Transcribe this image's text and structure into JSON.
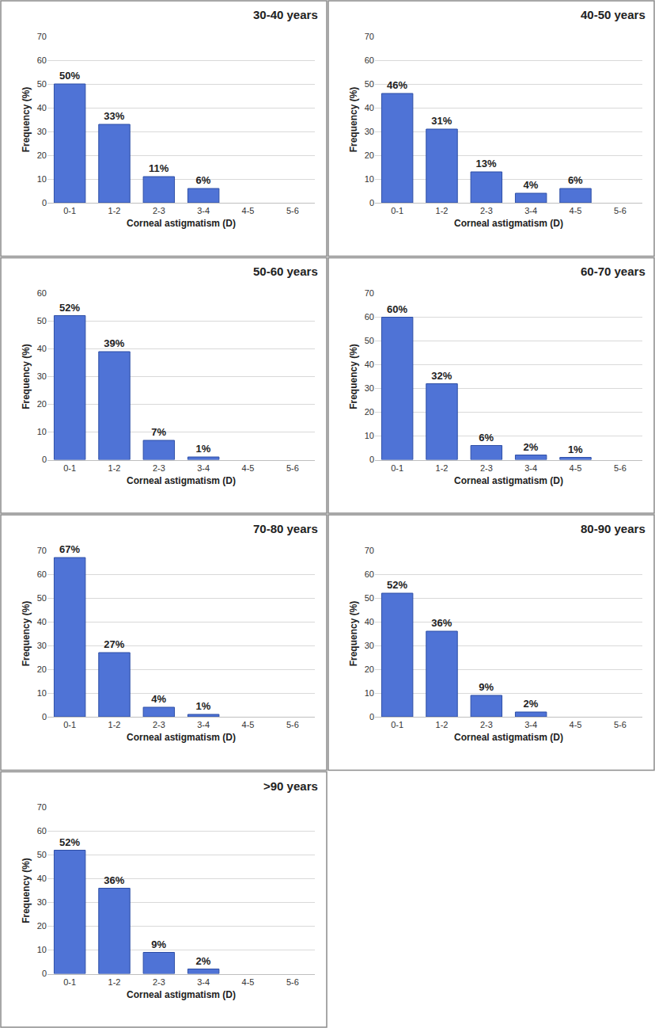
{
  "chart_data": [
    {
      "type": "bar",
      "title": "30-40 years",
      "x_label": "Corneal astigmatism (D)",
      "y_label": "Frequency (%)",
      "categories": [
        "0-1",
        "1-2",
        "2-3",
        "3-4",
        "4-5",
        "5-6"
      ],
      "values": [
        50,
        33,
        11,
        6,
        null,
        null
      ],
      "value_labels": [
        "50%",
        "33%",
        "11%",
        "6%",
        null,
        null
      ],
      "color": "#4f73d6",
      "ylim": [
        0,
        70
      ],
      "yticks": [
        0,
        10,
        20,
        30,
        40,
        50,
        60,
        70
      ],
      "grid": true,
      "data_labels": true
    },
    {
      "type": "bar",
      "title": "40-50 years",
      "x_label": "Corneal astigmatism (D)",
      "y_label": "Frequency (%)",
      "categories": [
        "0-1",
        "1-2",
        "2-3",
        "3-4",
        "4-5",
        "5-6"
      ],
      "values": [
        46,
        31,
        13,
        4,
        6,
        null
      ],
      "value_labels": [
        "46%",
        "31%",
        "13%",
        "4%",
        "6%",
        null
      ],
      "color": "#4f73d6",
      "ylim": [
        0,
        70
      ],
      "yticks": [
        0,
        10,
        20,
        30,
        40,
        50,
        60,
        70
      ],
      "grid": true,
      "data_labels": true
    },
    {
      "type": "bar",
      "title": "50-60 years",
      "x_label": "Corneal astigmatism (D)",
      "y_label": "Frequency (%)",
      "categories": [
        "0-1",
        "1-2",
        "2-3",
        "3-4",
        "4-5",
        "5-6"
      ],
      "values": [
        52,
        39,
        7,
        1,
        null,
        null
      ],
      "value_labels": [
        "52%",
        "39%",
        "7%",
        "1%",
        null,
        null
      ],
      "color": "#4f73d6",
      "ylim": [
        0,
        60
      ],
      "yticks": [
        0,
        10,
        20,
        30,
        40,
        50,
        60
      ],
      "grid": true,
      "data_labels": true
    },
    {
      "type": "bar",
      "title": "60-70 years",
      "x_label": "Corneal astigmatism (D)",
      "y_label": "Frequency (%)",
      "categories": [
        "0-1",
        "1-2",
        "2-3",
        "3-4",
        "4-5",
        "5-6"
      ],
      "values": [
        60,
        32,
        6,
        2,
        1,
        null
      ],
      "value_labels": [
        "60%",
        "32%",
        "6%",
        "2%",
        "1%",
        null
      ],
      "color": "#4f73d6",
      "ylim": [
        0,
        70
      ],
      "yticks": [
        0,
        10,
        20,
        30,
        40,
        50,
        60,
        70
      ],
      "grid": true,
      "data_labels": true
    },
    {
      "type": "bar",
      "title": "70-80 years",
      "x_label": "Corneal astigmatism (D)",
      "y_label": "Frequency (%)",
      "categories": [
        "0-1",
        "1-2",
        "2-3",
        "3-4",
        "4-5",
        "5-6"
      ],
      "values": [
        67,
        27,
        4,
        1,
        null,
        null
      ],
      "value_labels": [
        "67%",
        "27%",
        "4%",
        "1%",
        null,
        null
      ],
      "color": "#4f73d6",
      "ylim": [
        0,
        70
      ],
      "yticks": [
        0,
        10,
        20,
        30,
        40,
        50,
        60,
        70
      ],
      "grid": true,
      "data_labels": true
    },
    {
      "type": "bar",
      "title": "80-90 years",
      "x_label": "Corneal astigmatism (D)",
      "y_label": "Frequency (%)",
      "categories": [
        "0-1",
        "1-2",
        "2-3",
        "3-4",
        "4-5",
        "5-6"
      ],
      "values": [
        52,
        36,
        9,
        2,
        null,
        null
      ],
      "value_labels": [
        "52%",
        "36%",
        "9%",
        "2%",
        null,
        null
      ],
      "color": "#4f73d6",
      "ylim": [
        0,
        70
      ],
      "yticks": [
        0,
        10,
        20,
        30,
        40,
        50,
        60,
        70
      ],
      "grid": true,
      "data_labels": true
    },
    {
      "type": "bar",
      "title": ">90 years",
      "x_label": "Corneal astigmatism (D)",
      "y_label": "Frequency (%)",
      "categories": [
        "0-1",
        "1-2",
        "2-3",
        "3-4",
        "4-5",
        "5-6"
      ],
      "values": [
        52,
        36,
        9,
        2,
        null,
        null
      ],
      "value_labels": [
        "52%",
        "36%",
        "9%",
        "2%",
        null,
        null
      ],
      "color": "#4f73d6",
      "ylim": [
        0,
        70
      ],
      "yticks": [
        0,
        10,
        20,
        30,
        40,
        50,
        60,
        70
      ],
      "grid": true,
      "data_labels": true
    }
  ]
}
